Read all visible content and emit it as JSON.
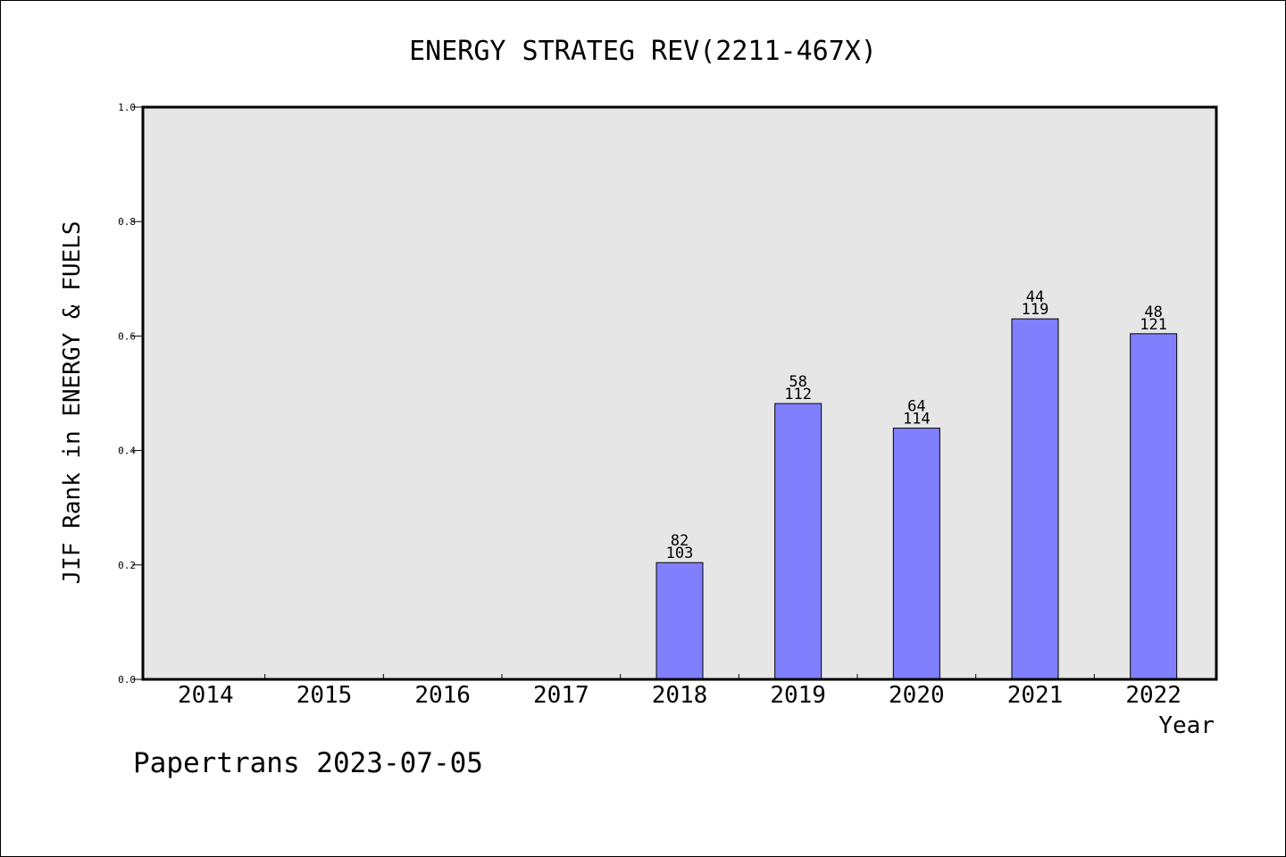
{
  "chart_data": {
    "type": "bar",
    "title": "ENERGY STRATEG REV(2211-467X)",
    "xlabel": "Year",
    "ylabel": "JIF Rank in ENERGY & FUELS",
    "categories": [
      "2014",
      "2015",
      "2016",
      "2017",
      "2018",
      "2019",
      "2020",
      "2021",
      "2022"
    ],
    "values": [
      null,
      null,
      null,
      null,
      0.204,
      0.482,
      0.439,
      0.63,
      0.604
    ],
    "rank_labels": [
      "",
      "",
      "",
      "",
      "82",
      "58",
      "64",
      "44",
      "48"
    ],
    "total_labels": [
      "",
      "",
      "",
      "",
      "103",
      "112",
      "114",
      "119",
      "121"
    ],
    "ylim": [
      0,
      1.0
    ],
    "yticks": [
      "0.0",
      "0.2",
      "0.4",
      "0.6",
      "0.8",
      "1.0"
    ],
    "grid": false,
    "colors": {
      "bar": "#8080ff",
      "plot_background": "#e6e6e6",
      "bar_edge": "#000000"
    }
  },
  "footer": "Papertrans 2023-07-05"
}
